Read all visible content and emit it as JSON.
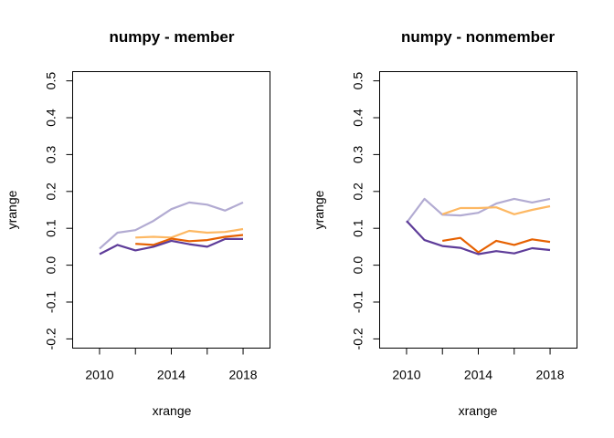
{
  "chart_data": [
    {
      "type": "line",
      "title": "numpy - member",
      "xlabel": "xrange",
      "ylabel": "yrange",
      "xlim": [
        2008.5,
        2019.5
      ],
      "ylim": [
        -0.225,
        0.525
      ],
      "xticks": [
        2010,
        2014,
        2018
      ],
      "xtick_labels": [
        "2010",
        "2014",
        "2018"
      ],
      "yticks": [
        -0.2,
        -0.1,
        0.0,
        0.1,
        0.2,
        0.3,
        0.4,
        0.5
      ],
      "ytick_labels": [
        "-0.2",
        "-0.1",
        "0.0",
        "0.1",
        "0.2",
        "0.3",
        "0.4",
        "0.5"
      ],
      "grid": false,
      "series": [
        {
          "color": "#b2abd2",
          "x": [
            2010,
            2011,
            2012,
            2013,
            2014,
            2015,
            2016,
            2017,
            2018
          ],
          "y": [
            0.045,
            0.088,
            0.095,
            0.12,
            0.152,
            0.17,
            0.164,
            0.148,
            0.17
          ]
        },
        {
          "color": "#fdb863",
          "x": [
            2012,
            2013,
            2014,
            2015,
            2016,
            2017,
            2018
          ],
          "y": [
            0.075,
            0.077,
            0.075,
            0.093,
            0.088,
            0.09,
            0.098
          ]
        },
        {
          "color": "#e66101",
          "x": [
            2012,
            2013,
            2014,
            2015,
            2016,
            2017,
            2018
          ],
          "y": [
            0.058,
            0.055,
            0.072,
            0.065,
            0.068,
            0.077,
            0.082
          ]
        },
        {
          "color": "#5e3c99",
          "x": [
            2010,
            2011,
            2012,
            2013,
            2014,
            2015,
            2016,
            2017,
            2018
          ],
          "y": [
            0.03,
            0.055,
            0.04,
            0.05,
            0.066,
            0.057,
            0.05,
            0.071,
            0.071
          ]
        }
      ]
    },
    {
      "type": "line",
      "title": "numpy - nonmember",
      "xlabel": "xrange",
      "ylabel": "yrange",
      "xlim": [
        2008.5,
        2019.5
      ],
      "ylim": [
        -0.225,
        0.525
      ],
      "xticks": [
        2010,
        2014,
        2018
      ],
      "xtick_labels": [
        "2010",
        "2014",
        "2018"
      ],
      "yticks": [
        -0.2,
        -0.1,
        0.0,
        0.1,
        0.2,
        0.3,
        0.4,
        0.5
      ],
      "ytick_labels": [
        "-0.2",
        "-0.1",
        "0.0",
        "0.1",
        "0.2",
        "0.3",
        "0.4",
        "0.5"
      ],
      "grid": false,
      "series": [
        {
          "color": "#b2abd2",
          "x": [
            2010,
            2011,
            2012,
            2013,
            2014,
            2015,
            2016,
            2017,
            2018
          ],
          "y": [
            0.115,
            0.18,
            0.137,
            0.135,
            0.142,
            0.167,
            0.18,
            0.17,
            0.18
          ]
        },
        {
          "color": "#fdb863",
          "x": [
            2012,
            2013,
            2014,
            2015,
            2016,
            2017,
            2018
          ],
          "y": [
            0.138,
            0.155,
            0.155,
            0.157,
            0.138,
            0.15,
            0.16
          ]
        },
        {
          "color": "#e66101",
          "x": [
            2012,
            2013,
            2014,
            2015,
            2016,
            2017,
            2018
          ],
          "y": [
            0.066,
            0.074,
            0.035,
            0.066,
            0.055,
            0.07,
            0.063
          ]
        },
        {
          "color": "#5e3c99",
          "x": [
            2010,
            2011,
            2012,
            2013,
            2014,
            2015,
            2016,
            2017,
            2018
          ],
          "y": [
            0.12,
            0.068,
            0.052,
            0.047,
            0.03,
            0.038,
            0.032,
            0.046,
            0.041
          ]
        }
      ]
    }
  ]
}
